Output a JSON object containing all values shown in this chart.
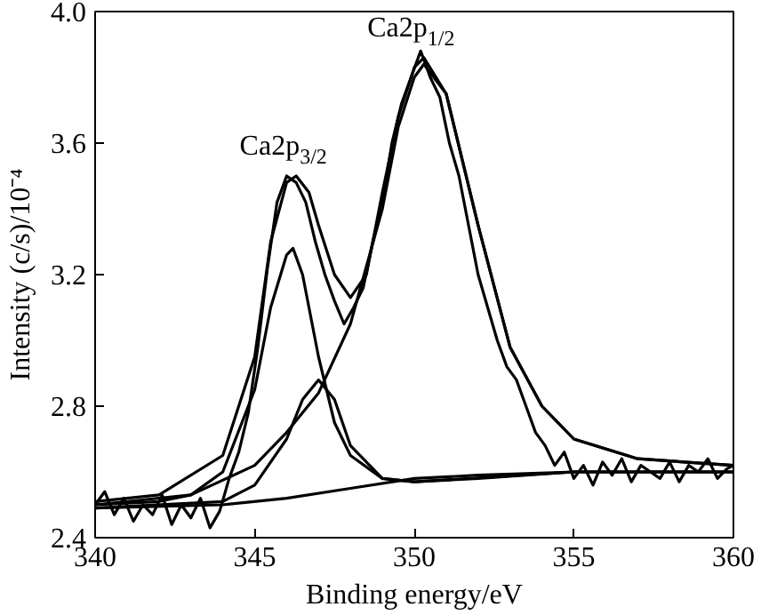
{
  "chart_data": {
    "type": "line",
    "xlabel": "Binding energy/eV",
    "ylabel": "Intensity (c/s)/10⁻⁴",
    "xlim": [
      340,
      360
    ],
    "ylim": [
      2.4,
      4.0
    ],
    "xticks": [
      340,
      345,
      350,
      355,
      360
    ],
    "yticks": [
      2.4,
      2.8,
      3.2,
      3.6,
      {
        "value": 4.0,
        "label": "4.0"
      }
    ],
    "grid": false,
    "line_style": "solid",
    "annotations": [
      "Ca2p$_{3/2}$",
      "Ca2p$_{1/2}$"
    ],
    "series": [
      {
        "color": "#000000",
        "x": [
          340,
          340.3,
          340.6,
          340.9,
          341.2,
          341.5,
          341.8,
          342.1,
          342.4,
          342.7,
          343,
          343.3,
          343.6,
          343.9,
          344.2,
          344.5,
          344.8,
          345.1,
          345.4,
          345.7,
          346,
          346.3,
          346.6,
          346.9,
          347.2,
          347.5,
          347.8,
          348.1,
          348.4,
          348.7,
          349,
          349.3,
          349.6,
          349.9,
          350.2,
          350.5,
          350.8,
          351.1,
          351.4,
          351.7,
          352,
          352.3,
          352.6,
          352.9,
          353.2,
          353.5,
          353.8,
          354.1,
          354.4,
          354.7,
          355,
          355.3,
          355.6,
          355.9,
          356.2,
          356.5,
          356.8,
          357.1,
          357.4,
          357.7,
          358,
          358.3,
          358.6,
          358.9,
          359.2,
          359.5,
          359.8,
          360
        ],
        "values": [
          2.5,
          2.54,
          2.47,
          2.52,
          2.45,
          2.5,
          2.47,
          2.53,
          2.44,
          2.5,
          2.46,
          2.52,
          2.43,
          2.48,
          2.58,
          2.66,
          2.78,
          2.98,
          3.22,
          3.42,
          3.5,
          3.48,
          3.42,
          3.3,
          3.2,
          3.12,
          3.05,
          3.1,
          3.16,
          3.3,
          3.42,
          3.6,
          3.72,
          3.8,
          3.88,
          3.8,
          3.74,
          3.6,
          3.5,
          3.35,
          3.2,
          3.1,
          3.0,
          2.92,
          2.88,
          2.8,
          2.72,
          2.68,
          2.62,
          2.66,
          2.58,
          2.62,
          2.56,
          2.63,
          2.59,
          2.64,
          2.57,
          2.62,
          2.6,
          2.58,
          2.63,
          2.57,
          2.62,
          2.6,
          2.64,
          2.58,
          2.61,
          2.62
        ]
      },
      {
        "color": "#000000",
        "x": [
          340,
          342,
          344,
          345,
          345.5,
          346,
          346.3,
          346.7,
          347,
          347.5,
          348,
          348.5,
          349,
          349.5,
          350,
          350.3,
          351,
          352,
          353,
          354,
          355,
          357,
          360
        ],
        "values": [
          2.51,
          2.53,
          2.65,
          2.95,
          3.3,
          3.48,
          3.5,
          3.45,
          3.35,
          3.2,
          3.13,
          3.2,
          3.45,
          3.68,
          3.83,
          3.86,
          3.75,
          3.35,
          2.98,
          2.8,
          2.7,
          2.64,
          2.62
        ]
      },
      {
        "color": "#000000",
        "x": [
          340,
          342,
          343,
          344,
          345,
          345.5,
          346,
          346.2,
          346.5,
          347,
          347.5,
          348,
          349,
          350,
          352,
          355,
          360
        ],
        "values": [
          2.5,
          2.51,
          2.53,
          2.6,
          2.85,
          3.1,
          3.26,
          3.28,
          3.2,
          2.95,
          2.75,
          2.65,
          2.58,
          2.57,
          2.58,
          2.6,
          2.6
        ]
      },
      {
        "color": "#000000",
        "x": [
          340,
          344,
          345,
          346,
          346.5,
          347,
          347.5,
          348,
          349,
          350,
          355,
          360
        ],
        "values": [
          2.49,
          2.51,
          2.56,
          2.7,
          2.82,
          2.88,
          2.82,
          2.68,
          2.58,
          2.57,
          2.6,
          2.6
        ]
      },
      {
        "color": "#000000",
        "x": [
          340,
          343,
          345,
          346,
          347,
          348,
          349,
          349.5,
          350,
          350.3,
          351,
          352,
          353,
          354,
          355,
          357,
          360
        ],
        "values": [
          2.5,
          2.53,
          2.62,
          2.72,
          2.84,
          3.05,
          3.4,
          3.65,
          3.8,
          3.84,
          3.75,
          3.35,
          2.98,
          2.8,
          2.7,
          2.64,
          2.62
        ]
      },
      {
        "color": "#000000",
        "x": [
          340,
          344,
          346,
          348,
          350,
          352,
          355,
          360
        ],
        "values": [
          2.49,
          2.5,
          2.52,
          2.55,
          2.58,
          2.59,
          2.6,
          2.6
        ]
      }
    ]
  }
}
